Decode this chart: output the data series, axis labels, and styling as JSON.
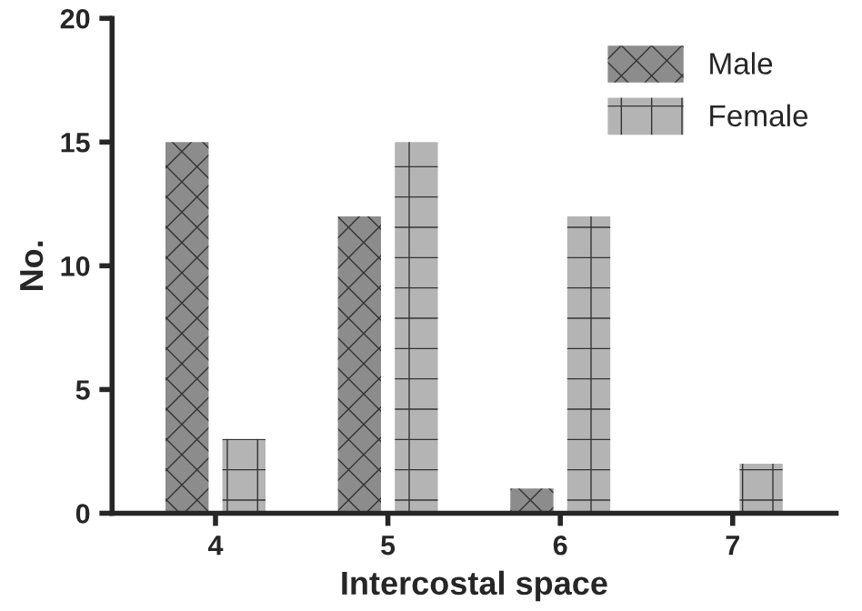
{
  "chart_data": {
    "type": "bar",
    "xlabel": "Intercostal space",
    "ylabel": "No.",
    "categories": [
      "4",
      "5",
      "6",
      "7"
    ],
    "series": [
      {
        "name": "Male",
        "color": "#8c8c8c",
        "values": [
          15,
          12,
          1,
          0
        ]
      },
      {
        "name": "Female",
        "color": "#b4b4b4",
        "values": [
          3,
          15,
          12,
          2
        ]
      }
    ],
    "ylim": [
      0,
      20
    ],
    "yticks": [
      0,
      5,
      10,
      15,
      20
    ],
    "grid": false,
    "legend": "top right"
  }
}
